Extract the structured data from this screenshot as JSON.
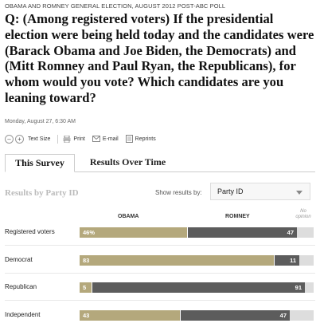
{
  "kicker": "Obama and Romney General Election, August 2012 Post-ABC Poll",
  "headline": "Q: (Among registered voters) If the presidential election were being held today and the candidates were (Barack Obama and Joe Biden, the Democrats) and (Mitt Romney and Paul Ryan, the Republicans), for whom would you vote? Which candidates are you leaning toward?",
  "dateline": "Monday, August 27, 6:30 AM",
  "tools": {
    "text_size": "Text Size",
    "print": "Print",
    "email": "E-mail",
    "reprints": "Reprints"
  },
  "tabs": [
    "This Survey",
    "Results Over Time"
  ],
  "section_title": "Results by Party ID",
  "show_results_label": "Show results by:",
  "select_value": "Party ID",
  "columns": {
    "obama": "OBAMA",
    "romney": "ROMNEY",
    "no_opinion": "No opinion"
  },
  "colors": {
    "obama": "#b4a87c",
    "romney": "#5c5c5c",
    "no_opinion": "#dddddd"
  },
  "chart_data": {
    "type": "bar",
    "orientation": "horizontal-stacked",
    "categories": [
      "Registered voters",
      "Democrat",
      "Republican",
      "Independent"
    ],
    "series": [
      {
        "name": "OBAMA",
        "values": [
          46,
          83,
          5,
          43
        ],
        "labels": [
          "46%",
          "83",
          "5",
          "43"
        ]
      },
      {
        "name": "ROMNEY",
        "values": [
          47,
          11,
          91,
          47
        ],
        "labels": [
          "47",
          "11",
          "91",
          "47"
        ]
      },
      {
        "name": "No opinion",
        "values": [
          7,
          6,
          4,
          10
        ]
      }
    ]
  }
}
